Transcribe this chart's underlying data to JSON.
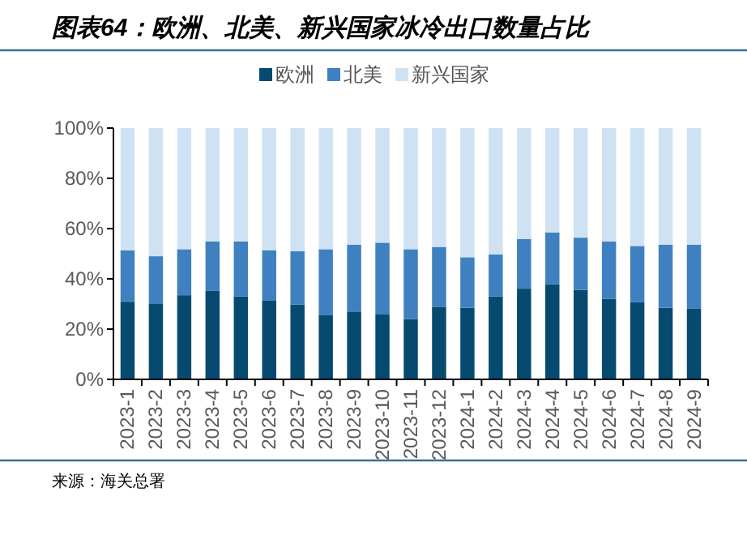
{
  "chart_data": {
    "type": "bar",
    "stacked": true,
    "title": "图表64：欧洲、北美、新兴国家冰冷出口数量占比",
    "categories": [
      "2023-1",
      "2023-2",
      "2023-3",
      "2023-4",
      "2023-5",
      "2023-6",
      "2023-7",
      "2023-8",
      "2023-9",
      "2023-10",
      "2023-11",
      "2023-12",
      "2024-1",
      "2024-2",
      "2024-3",
      "2024-4",
      "2024-5",
      "2024-6",
      "2024-7",
      "2024-8",
      "2024-9"
    ],
    "series": [
      {
        "name": "欧洲",
        "color": "#074a70",
        "values": [
          30.9,
          30.0,
          33.5,
          35.2,
          33.0,
          31.5,
          29.8,
          25.5,
          27.0,
          25.8,
          24.0,
          28.9,
          28.5,
          33.0,
          36.1,
          37.8,
          35.6,
          32.0,
          30.7,
          28.5,
          28.1
        ]
      },
      {
        "name": "北美",
        "color": "#3f81c0",
        "values": [
          20.5,
          19.0,
          18.3,
          19.7,
          21.9,
          19.9,
          21.2,
          26.3,
          26.6,
          28.6,
          27.8,
          23.8,
          20.1,
          16.7,
          19.8,
          20.7,
          20.8,
          22.9,
          22.4,
          25.1,
          25.5
        ]
      },
      {
        "name": "新兴国家",
        "color": "#cfe2f3",
        "values": [
          48.6,
          51.0,
          48.2,
          45.1,
          45.1,
          48.6,
          49.0,
          48.2,
          46.4,
          45.6,
          48.2,
          47.3,
          51.4,
          50.3,
          44.1,
          41.5,
          43.6,
          45.1,
          46.9,
          46.4,
          46.4
        ]
      }
    ],
    "ylim": [
      0,
      100
    ],
    "yticks": [
      {
        "value": 0,
        "label": "0%"
      },
      {
        "value": 20,
        "label": "20%"
      },
      {
        "value": 40,
        "label": "40%"
      },
      {
        "value": 60,
        "label": "60%"
      },
      {
        "value": 80,
        "label": "80%"
      },
      {
        "value": 100,
        "label": "100%"
      }
    ],
    "legend": "top",
    "annotations": [
      "来源：海关总署"
    ]
  }
}
